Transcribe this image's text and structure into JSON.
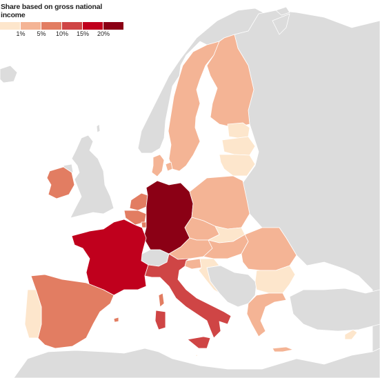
{
  "legend": {
    "title": "Share based on gross national income",
    "ticks": [
      "1%",
      "5%",
      "10%",
      "15%",
      "20%"
    ],
    "colors": [
      "#fde6cc",
      "#f4b495",
      "#e27d62",
      "#cf4545",
      "#c0001d",
      "#8b0015"
    ]
  },
  "map_colors": {
    "non_member": "#dcdcdc",
    "sea": "#ffffff"
  }
}
